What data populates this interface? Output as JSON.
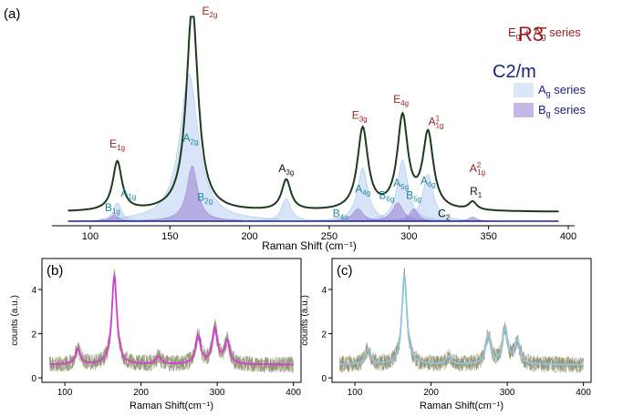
{
  "chart_data": [
    {
      "panel": "(a)",
      "type": "line",
      "xlabel": "Raman Shift (cm⁻¹)",
      "xticks": [
        100,
        150,
        200,
        250,
        300,
        350,
        400
      ],
      "xlim": [
        80,
        400
      ],
      "colors": {
        "total": "#1c3a1c",
        "ag": "#dbe6f7",
        "bg": "#c6b8e6",
        "r3_label": "#9b1c1c",
        "c2m_label": "#1a237e",
        "teal_label": "#1f8a9a"
      },
      "legend": {
        "r3_title": "R3̄",
        "r3_subtitle": "Eg + Ag series",
        "c2m_title": "C2/m",
        "entries": [
          "Ag series",
          "Bg series"
        ],
        "placement": "right"
      },
      "total_peaks": [
        {
          "x": 117,
          "h": 0.24,
          "w": 3.5
        },
        {
          "x": 164,
          "h": 1.0,
          "w": 4.5
        },
        {
          "x": 223,
          "h": 0.15,
          "w": 3.5
        },
        {
          "x": 271,
          "h": 0.4,
          "w": 4
        },
        {
          "x": 296,
          "h": 0.45,
          "w": 4
        },
        {
          "x": 312,
          "h": 0.37,
          "w": 4
        },
        {
          "x": 340,
          "h": 0.04,
          "w": 3
        }
      ],
      "ag_peaks": [
        {
          "x": 117,
          "h": 0.09,
          "w": 3
        },
        {
          "x": 162,
          "h": 0.72,
          "w": 7
        },
        {
          "x": 223,
          "h": 0.11,
          "w": 3.5
        },
        {
          "x": 271,
          "h": 0.26,
          "w": 4
        },
        {
          "x": 296,
          "h": 0.3,
          "w": 4
        },
        {
          "x": 312,
          "h": 0.23,
          "w": 4
        }
      ],
      "bg_peaks": [
        {
          "x": 115,
          "h": 0.03,
          "w": 3
        },
        {
          "x": 164,
          "h": 0.27,
          "w": 4
        },
        {
          "x": 268,
          "h": 0.06,
          "w": 4
        },
        {
          "x": 293,
          "h": 0.09,
          "w": 4
        },
        {
          "x": 303,
          "h": 0.06,
          "w": 3
        },
        {
          "x": 340,
          "h": 0.02,
          "w": 3
        }
      ],
      "annotations": [
        {
          "base": "E",
          "sup": "",
          "sub": "1g",
          "x": 117,
          "level": 0.36,
          "color": "r3"
        },
        {
          "base": "A",
          "sup": "",
          "sub": "1g",
          "x": 124,
          "level": 0.12,
          "color": "teal"
        },
        {
          "base": "B",
          "sup": "",
          "sub": "1g",
          "x": 114,
          "level": 0.05,
          "color": "teal"
        },
        {
          "base": "E",
          "sup": "",
          "sub": "2g",
          "x": 175,
          "level": 1.01,
          "color": "r3"
        },
        {
          "base": "A",
          "sup": "",
          "sub": "2g",
          "x": 163,
          "level": 0.39,
          "color": "teal"
        },
        {
          "base": "B",
          "sup": "",
          "sub": "2g",
          "x": 172,
          "level": 0.1,
          "color": "teal"
        },
        {
          "base": "A",
          "sup": "",
          "sub": "3g",
          "x": 223,
          "level": 0.24,
          "color": "black"
        },
        {
          "base": "E",
          "sup": "",
          "sub": "3g",
          "x": 269,
          "level": 0.5,
          "color": "r3"
        },
        {
          "base": "A",
          "sup": "",
          "sub": "4g",
          "x": 271,
          "level": 0.14,
          "color": "teal"
        },
        {
          "base": "B",
          "sup": "",
          "sub": "4g",
          "x": 257,
          "level": 0.02,
          "color": "teal"
        },
        {
          "base": "E",
          "sup": "",
          "sub": "4g",
          "x": 295,
          "level": 0.58,
          "color": "r3"
        },
        {
          "base": "A",
          "sup": "",
          "sub": "5g",
          "x": 295,
          "level": 0.17,
          "color": "teal"
        },
        {
          "base": "B",
          "sup": "",
          "sub": "6g",
          "x": 286,
          "level": 0.11,
          "color": "teal"
        },
        {
          "base": "B",
          "sup": "",
          "sub": "5g",
          "x": 303,
          "level": 0.11,
          "color": "teal"
        },
        {
          "base": "A",
          "sup": "1",
          "sub": "1g",
          "x": 317,
          "level": 0.47,
          "color": "r3"
        },
        {
          "base": "A",
          "sup": "",
          "sub": "6g",
          "x": 312,
          "level": 0.18,
          "color": "teal"
        },
        {
          "base": "C",
          "sup": "",
          "sub": "2",
          "x": 322,
          "level": 0.02,
          "color": "black"
        },
        {
          "base": "A",
          "sup": "2",
          "sub": "1g",
          "x": 343,
          "level": 0.24,
          "color": "r3"
        },
        {
          "base": "R",
          "sup": "",
          "sub": "1",
          "x": 342,
          "level": 0.13,
          "color": "black"
        }
      ]
    },
    {
      "panel": "(b)",
      "type": "line",
      "xlabel": "Raman Shift(cm⁻¹)",
      "ylabel": "counts (a.u.)",
      "xticks": [
        100,
        200,
        300,
        400
      ],
      "yticks": [
        0,
        2,
        4
      ],
      "xlim": [
        70,
        410
      ],
      "ylim": [
        -0.2,
        5.4
      ],
      "line_color": "#d23fd2",
      "band_color": "#8a8a6a"
    },
    {
      "panel": "(c)",
      "type": "line",
      "xlabel": "Raman Shift(cm⁻¹)",
      "ylabel": "counts (a.u.)",
      "xticks": [
        100,
        200,
        300,
        400
      ],
      "yticks": [
        0,
        2,
        4
      ],
      "xlim": [
        70,
        410
      ],
      "ylim": [
        -0.2,
        5.4
      ],
      "line_color": "#8ec6e0",
      "band_color": "#8a8a6a"
    }
  ],
  "spectrum_bc": {
    "baseline": 0.6,
    "peaks": [
      {
        "x": 117,
        "h": 0.7,
        "w": 4
      },
      {
        "x": 165,
        "h": 4.0,
        "w": 4
      },
      {
        "x": 223,
        "h": 0.35,
        "w": 4
      },
      {
        "x": 275,
        "h": 1.3,
        "w": 4
      },
      {
        "x": 297,
        "h": 1.6,
        "w": 4
      },
      {
        "x": 313,
        "h": 1.05,
        "w": 4
      }
    ]
  }
}
